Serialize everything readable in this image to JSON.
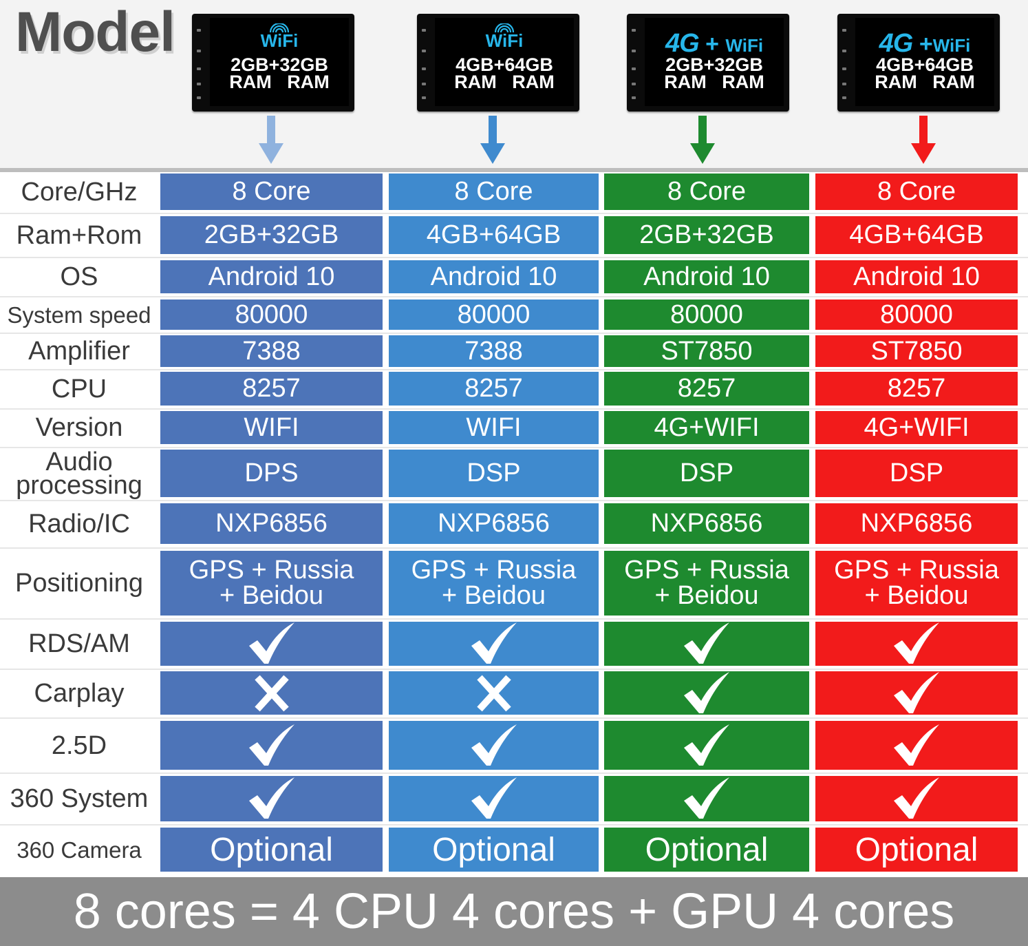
{
  "header": {
    "title": "Model",
    "models": [
      {
        "network": "WiFi",
        "specs": "2GB+32GB\nRAM   RAM",
        "arrow_color": "#8fb2de"
      },
      {
        "network": "WiFi",
        "specs": "4GB+64GB\nRAM   RAM",
        "arrow_color": "#3f8ace"
      },
      {
        "network": "4G + WiFi",
        "specs": "2GB+32GB\nRAM   RAM",
        "arrow_color": "#1e8a2f"
      },
      {
        "network": "4G +WiFi",
        "specs": "4GB+64GB\nRAM   RAM",
        "arrow_color": "#f21b1b"
      }
    ]
  },
  "colors": {
    "col1": "#4d74b8",
    "col2": "#3f8ace",
    "col3": "#1e8a2f",
    "col4": "#f21b1b"
  },
  "table": {
    "rows": [
      {
        "label": "Core/GHz",
        "values": [
          "8 Core",
          "8 Core",
          "8 Core",
          "8 Core"
        ]
      },
      {
        "label": "Ram+Rom",
        "values": [
          "2GB+32GB",
          "4GB+64GB",
          "2GB+32GB",
          "4GB+64GB"
        ]
      },
      {
        "label": "OS",
        "values": [
          "Android 10",
          "Android 10",
          "Android 10",
          "Android 10"
        ]
      },
      {
        "label": "System speed",
        "values": [
          "80000",
          "80000",
          "80000",
          "80000"
        ]
      },
      {
        "label": "Amplifier",
        "values": [
          "7388",
          "7388",
          "ST7850",
          "ST7850"
        ]
      },
      {
        "label": "CPU",
        "values": [
          "8257",
          "8257",
          "8257",
          "8257"
        ]
      },
      {
        "label": "Version",
        "values": [
          "WIFI",
          "WIFI",
          "4G+WIFI",
          "4G+WIFI"
        ]
      },
      {
        "label": "Audio\nprocessing",
        "values": [
          "DPS",
          "DSP",
          "DSP",
          "DSP"
        ]
      },
      {
        "label": "Radio/IC",
        "values": [
          "NXP6856",
          "NXP6856",
          "NXP6856",
          "NXP6856"
        ]
      },
      {
        "label": "Positioning",
        "values": [
          "GPS + Russia\n+ Beidou",
          "GPS + Russia\n+ Beidou",
          "GPS + Russia\n+ Beidou",
          "GPS + Russia\n+ Beidou"
        ]
      },
      {
        "label": "RDS/AM",
        "values": [
          "check",
          "check",
          "check",
          "check"
        ]
      },
      {
        "label": "Carplay",
        "values": [
          "cross",
          "cross",
          "check",
          "check"
        ]
      },
      {
        "label": "2.5D",
        "values": [
          "check",
          "check",
          "check",
          "check"
        ]
      },
      {
        "label": "360 System",
        "values": [
          "check",
          "check",
          "check",
          "check"
        ]
      },
      {
        "label": "360 Camera",
        "values": [
          "Optional",
          "Optional",
          "Optional",
          "Optional"
        ]
      }
    ]
  },
  "footer": {
    "text": "8 cores = 4 CPU 4 cores + GPU 4 cores"
  }
}
